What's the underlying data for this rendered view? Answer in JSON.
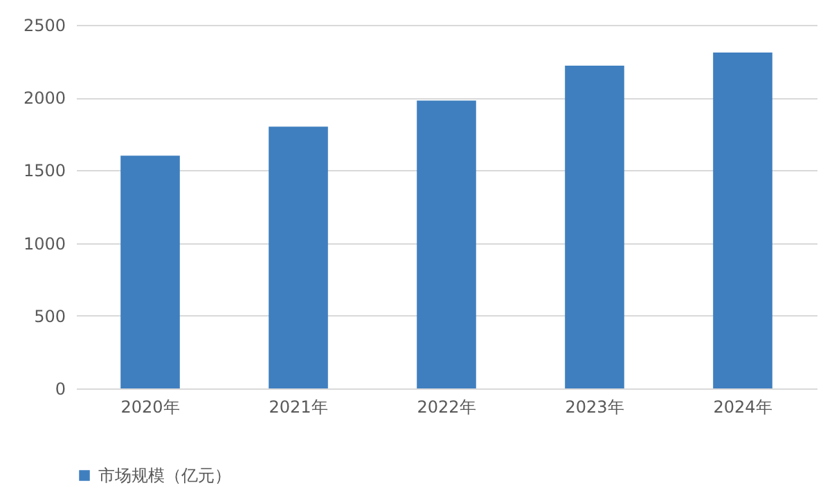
{
  "chart_data": {
    "type": "bar",
    "categories": [
      "2020年",
      "2021年",
      "2022年",
      "2023年",
      "2024年"
    ],
    "series": [
      {
        "name": "市场规模（亿元）",
        "color": "#3f7fbf",
        "values": [
          1600,
          1800,
          1980,
          2220,
          2310
        ]
      }
    ],
    "ylim": [
      0,
      2500
    ],
    "yticks": [
      0,
      500,
      1000,
      1500,
      2000,
      2500
    ],
    "grid": "y",
    "legend": "bottom"
  }
}
